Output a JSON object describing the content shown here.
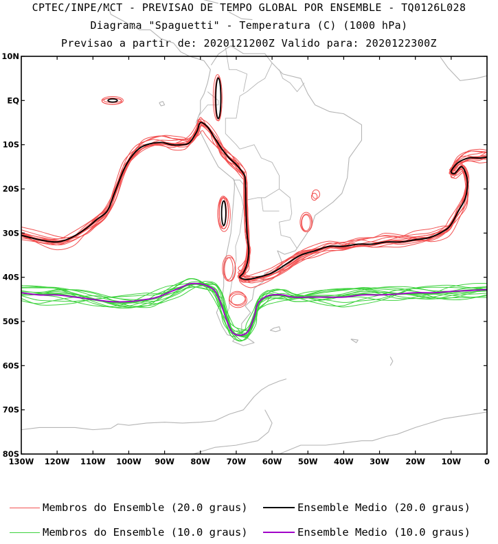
{
  "header": {
    "line1": "CPTEC/INPE/MCT - PREVISAO DE TEMPO GLOBAL POR ENSEMBLE - TQ0126L028",
    "line2": "Diagrama \"Spaguetti\" - Temperatura (C) (1000 hPa)",
    "line3": "Previsao a partir de: 2020121200Z  Valido para: 2020122300Z"
  },
  "map": {
    "lon_range": [
      -130,
      0
    ],
    "lat_range": [
      -80,
      10
    ],
    "y_ticks": [
      "10N",
      "EQ",
      "10S",
      "20S",
      "30S",
      "40S",
      "50S",
      "60S",
      "70S",
      "80S"
    ],
    "x_ticks": [
      "130W",
      "120W",
      "110W",
      "100W",
      "90W",
      "80W",
      "70W",
      "60W",
      "50W",
      "40W",
      "30W",
      "20W",
      "10W",
      "0"
    ],
    "colors": {
      "coast": "#b4b4b4",
      "member_20": "#f25050",
      "mean_20": "#000000",
      "member_10": "#3cd23c",
      "mean_10": "#a000c8"
    }
  },
  "chart_data": {
    "type": "line",
    "x_unit": "degrees longitude (negative = W)",
    "y_unit": "degrees latitude (negative = S)",
    "series": [
      {
        "name": "Ensemble Medio (20.0 graus)",
        "lon": [
          -130,
          -125,
          -120,
          -116,
          -112,
          -109,
          -106,
          -104,
          -101,
          -98,
          -95,
          -91,
          -88,
          -85,
          -83,
          -81,
          -80,
          -78,
          -76,
          -74,
          -72,
          -70,
          -68,
          -67.5,
          -67.3,
          -67,
          -66.5,
          -67,
          -68,
          -69,
          -67,
          -64,
          -60,
          -56,
          -52,
          -48,
          -44,
          -40,
          -36,
          -32,
          -28,
          -24,
          -20,
          -16,
          -12,
          -10,
          -8,
          -6,
          -5.5,
          -7,
          -9,
          -10,
          -8,
          -5,
          -2,
          0
        ],
        "lat": [
          -30.5,
          -31.5,
          -32,
          -31,
          -29,
          -27,
          -25,
          -21,
          -15,
          -11.5,
          -10,
          -9.5,
          -10,
          -10,
          -9.5,
          -7,
          -5,
          -6,
          -8.5,
          -11,
          -13,
          -14.5,
          -16.5,
          -18,
          -24,
          -30,
          -34,
          -37,
          -39,
          -40,
          -40.5,
          -40,
          -39,
          -37,
          -35,
          -34,
          -33,
          -33,
          -32.5,
          -32.5,
          -32,
          -32,
          -31.5,
          -31,
          -29.5,
          -28,
          -25,
          -22,
          -18,
          -15,
          -16.5,
          -16,
          -14,
          -13,
          -13,
          -12.8
        ]
      },
      {
        "name": "Ensemble Medio (10.0 graus)",
        "lon": [
          -130,
          -125,
          -120,
          -115,
          -110,
          -105,
          -100,
          -95,
          -92,
          -89,
          -86,
          -83,
          -80,
          -78,
          -76,
          -74.5,
          -73,
          -71.5,
          -70,
          -68,
          -66.5,
          -65,
          -64,
          -62,
          -60,
          -57,
          -54,
          -50,
          -45,
          -40,
          -35,
          -30,
          -25,
          -20,
          -15,
          -10,
          -5,
          0
        ],
        "lat": [
          -43.5,
          -44,
          -44,
          -44.5,
          -45,
          -45.5,
          -45.5,
          -45,
          -44.5,
          -43.5,
          -42.5,
          -41.5,
          -41.5,
          -42,
          -43,
          -45.5,
          -49,
          -52,
          -53,
          -53,
          -52,
          -49,
          -46,
          -44.5,
          -44,
          -44,
          -44.5,
          -44.5,
          -44.5,
          -44.5,
          -44,
          -44,
          -43.8,
          -43.5,
          -43.5,
          -43.2,
          -43,
          -42.8
        ]
      }
    ]
  },
  "legend": {
    "items": [
      {
        "label": "Membros do Ensemble (20.0 graus)",
        "color": "#f25050"
      },
      {
        "label": "Ensemble Medio (20.0 graus)",
        "color": "#000000"
      },
      {
        "label": "Membros do Ensemble (10.0 graus)",
        "color": "#3cd23c"
      },
      {
        "label": "Ensemble Medio (10.0 graus)",
        "color": "#a000c8"
      }
    ]
  }
}
